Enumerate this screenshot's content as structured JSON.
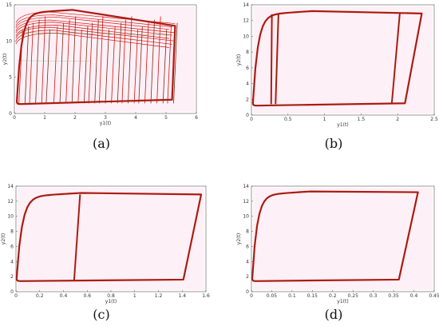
{
  "colors": {
    "dark": "#7a2a16",
    "red": "#d8110e",
    "pink": "#f7c4dd",
    "green": "#2fa84f",
    "frame": "#555555"
  },
  "chart_data": [
    {
      "label": "(a)",
      "type": "line",
      "xlabel": "y1(t)",
      "ylabel": "y2(t)",
      "xlim": [
        0,
        6
      ],
      "ylim": [
        0,
        15
      ],
      "xticks": [
        "0",
        "1",
        "2",
        "3",
        "4",
        "5",
        "6"
      ],
      "yticks": [
        "0",
        "5",
        "10",
        "15"
      ],
      "dense": true,
      "loops": [
        {
          "x0": 0.08,
          "x1": 5.3,
          "x2": 5.2,
          "ytop": 14.3,
          "yr": 12.1,
          "ybr": 1.9,
          "yb": 1.3,
          "marker": 0.4
        }
      ],
      "verticals": [
        0.15,
        0.35,
        0.5,
        0.7,
        0.9,
        1.05,
        1.3,
        1.5,
        1.7,
        1.9,
        2.1,
        2.3,
        2.45,
        2.65,
        2.8,
        3.0,
        3.2,
        3.4,
        3.55,
        3.75,
        3.95,
        4.1,
        4.3,
        4.5,
        4.7,
        4.9,
        5.05,
        5.25
      ],
      "hlines": [
        14.0,
        13.6,
        13.3,
        12.9,
        12.6,
        12.2,
        11.9,
        11.5,
        11.1
      ]
    },
    {
      "label": "(b)",
      "type": "line",
      "xlabel": "y1(t)",
      "ylabel": "y2(t)",
      "xlim": [
        0,
        2.5
      ],
      "ylim": [
        0,
        14
      ],
      "xticks": [
        "0",
        "0.5",
        "1",
        "1.5",
        "2",
        "2.5"
      ],
      "yticks": [
        "0",
        "2",
        "4",
        "6",
        "8",
        "10",
        "12",
        "14"
      ],
      "loops": [
        {
          "x0": 0.02,
          "x1": 2.33,
          "x2": 2.1,
          "ytop": 13.2,
          "yr": 12.9,
          "ybr": 1.5,
          "yb": 1.2,
          "marker": 0.3
        }
      ],
      "segments": [
        {
          "x1": 0.27,
          "y1": 1.4,
          "x2": 0.28,
          "y2": 12.8
        },
        {
          "x1": 0.33,
          "y1": 1.4,
          "x2": 0.37,
          "y2": 12.9
        },
        {
          "x1": 1.92,
          "y1": 1.5,
          "x2": 2.03,
          "y2": 13.0
        }
      ]
    },
    {
      "label": "(c)",
      "type": "line",
      "xlabel": "y1(t)",
      "ylabel": "y2(t)",
      "xlim": [
        0,
        1.6
      ],
      "ylim": [
        0,
        14
      ],
      "xticks": [
        "0",
        "0.2",
        "0.4",
        "0.6",
        "0.8",
        "1",
        "1.2",
        "1.4",
        "1.6"
      ],
      "yticks": [
        "0",
        "2",
        "4",
        "6",
        "8",
        "10",
        "12",
        "14"
      ],
      "loops": [
        {
          "x0": 0.005,
          "x1": 1.56,
          "x2": 1.41,
          "ytop": 13.1,
          "yr": 12.9,
          "ybr": 1.6,
          "yb": 1.4,
          "marker": 0.3
        }
      ],
      "segments": [
        {
          "x1": 0.49,
          "y1": 1.5,
          "x2": 0.54,
          "y2": 12.9
        }
      ]
    },
    {
      "label": "(d)",
      "type": "line",
      "xlabel": "y1(t)",
      "ylabel": "y2(t)",
      "xlim": [
        0,
        0.45
      ],
      "ylim": [
        0,
        14
      ],
      "xticks": [
        "0",
        "0.05",
        "0.1",
        "0.15",
        "0.2",
        "0.25",
        "0.3",
        "0.35",
        "0.4",
        "0.45"
      ],
      "yticks": [
        "0",
        "2",
        "4",
        "6",
        "8",
        "10",
        "12",
        "14"
      ],
      "loops": [
        {
          "x0": 0.002,
          "x1": 0.41,
          "x2": 0.363,
          "ytop": 13.3,
          "yr": 13.2,
          "ybr": 1.6,
          "yb": 1.4,
          "marker": 0.3
        }
      ]
    }
  ]
}
